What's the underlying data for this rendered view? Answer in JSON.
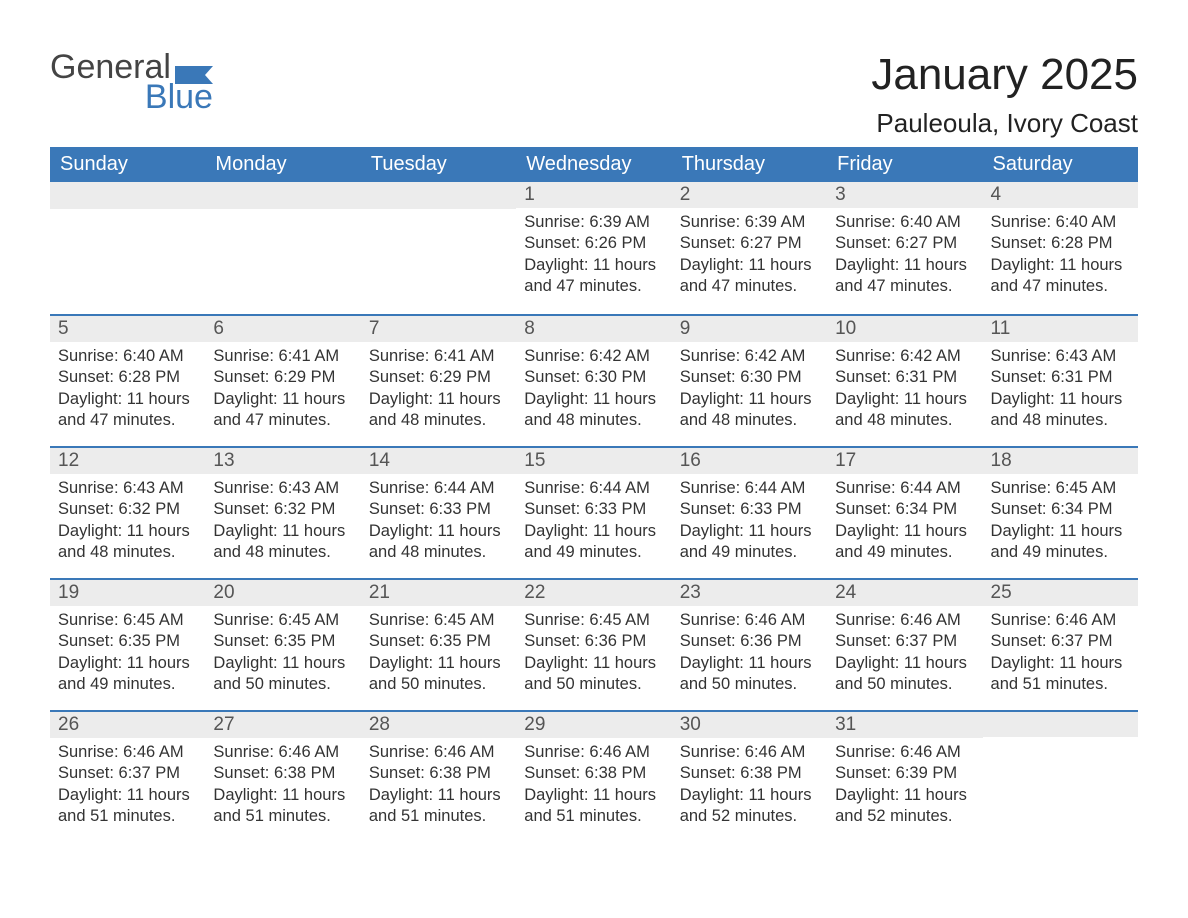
{
  "logo": {
    "word1": "General",
    "word2": "Blue",
    "accent_color": "#3a78b8",
    "text_color": "#444444"
  },
  "title": "January 2025",
  "location": "Pauleoula, Ivory Coast",
  "colors": {
    "header_bg": "#3a78b8",
    "header_text": "#ffffff",
    "daynum_bg": "#ececec",
    "row_divider": "#3a78b8",
    "body_text": "#333333",
    "page_bg": "#ffffff"
  },
  "typography": {
    "month_title_fontsize": 44,
    "location_fontsize": 26,
    "weekday_fontsize": 20,
    "daynum_fontsize": 19,
    "body_fontsize": 16.5,
    "logo_fontsize": 34
  },
  "weekdays": [
    "Sunday",
    "Monday",
    "Tuesday",
    "Wednesday",
    "Thursday",
    "Friday",
    "Saturday"
  ],
  "weeks": [
    [
      null,
      null,
      null,
      {
        "n": "1",
        "sr": "Sunrise: 6:39 AM",
        "ss": "Sunset: 6:26 PM",
        "dl": "Daylight: 11 hours and 47 minutes."
      },
      {
        "n": "2",
        "sr": "Sunrise: 6:39 AM",
        "ss": "Sunset: 6:27 PM",
        "dl": "Daylight: 11 hours and 47 minutes."
      },
      {
        "n": "3",
        "sr": "Sunrise: 6:40 AM",
        "ss": "Sunset: 6:27 PM",
        "dl": "Daylight: 11 hours and 47 minutes."
      },
      {
        "n": "4",
        "sr": "Sunrise: 6:40 AM",
        "ss": "Sunset: 6:28 PM",
        "dl": "Daylight: 11 hours and 47 minutes."
      }
    ],
    [
      {
        "n": "5",
        "sr": "Sunrise: 6:40 AM",
        "ss": "Sunset: 6:28 PM",
        "dl": "Daylight: 11 hours and 47 minutes."
      },
      {
        "n": "6",
        "sr": "Sunrise: 6:41 AM",
        "ss": "Sunset: 6:29 PM",
        "dl": "Daylight: 11 hours and 47 minutes."
      },
      {
        "n": "7",
        "sr": "Sunrise: 6:41 AM",
        "ss": "Sunset: 6:29 PM",
        "dl": "Daylight: 11 hours and 48 minutes."
      },
      {
        "n": "8",
        "sr": "Sunrise: 6:42 AM",
        "ss": "Sunset: 6:30 PM",
        "dl": "Daylight: 11 hours and 48 minutes."
      },
      {
        "n": "9",
        "sr": "Sunrise: 6:42 AM",
        "ss": "Sunset: 6:30 PM",
        "dl": "Daylight: 11 hours and 48 minutes."
      },
      {
        "n": "10",
        "sr": "Sunrise: 6:42 AM",
        "ss": "Sunset: 6:31 PM",
        "dl": "Daylight: 11 hours and 48 minutes."
      },
      {
        "n": "11",
        "sr": "Sunrise: 6:43 AM",
        "ss": "Sunset: 6:31 PM",
        "dl": "Daylight: 11 hours and 48 minutes."
      }
    ],
    [
      {
        "n": "12",
        "sr": "Sunrise: 6:43 AM",
        "ss": "Sunset: 6:32 PM",
        "dl": "Daylight: 11 hours and 48 minutes."
      },
      {
        "n": "13",
        "sr": "Sunrise: 6:43 AM",
        "ss": "Sunset: 6:32 PM",
        "dl": "Daylight: 11 hours and 48 minutes."
      },
      {
        "n": "14",
        "sr": "Sunrise: 6:44 AM",
        "ss": "Sunset: 6:33 PM",
        "dl": "Daylight: 11 hours and 48 minutes."
      },
      {
        "n": "15",
        "sr": "Sunrise: 6:44 AM",
        "ss": "Sunset: 6:33 PM",
        "dl": "Daylight: 11 hours and 49 minutes."
      },
      {
        "n": "16",
        "sr": "Sunrise: 6:44 AM",
        "ss": "Sunset: 6:33 PM",
        "dl": "Daylight: 11 hours and 49 minutes."
      },
      {
        "n": "17",
        "sr": "Sunrise: 6:44 AM",
        "ss": "Sunset: 6:34 PM",
        "dl": "Daylight: 11 hours and 49 minutes."
      },
      {
        "n": "18",
        "sr": "Sunrise: 6:45 AM",
        "ss": "Sunset: 6:34 PM",
        "dl": "Daylight: 11 hours and 49 minutes."
      }
    ],
    [
      {
        "n": "19",
        "sr": "Sunrise: 6:45 AM",
        "ss": "Sunset: 6:35 PM",
        "dl": "Daylight: 11 hours and 49 minutes."
      },
      {
        "n": "20",
        "sr": "Sunrise: 6:45 AM",
        "ss": "Sunset: 6:35 PM",
        "dl": "Daylight: 11 hours and 50 minutes."
      },
      {
        "n": "21",
        "sr": "Sunrise: 6:45 AM",
        "ss": "Sunset: 6:35 PM",
        "dl": "Daylight: 11 hours and 50 minutes."
      },
      {
        "n": "22",
        "sr": "Sunrise: 6:45 AM",
        "ss": "Sunset: 6:36 PM",
        "dl": "Daylight: 11 hours and 50 minutes."
      },
      {
        "n": "23",
        "sr": "Sunrise: 6:46 AM",
        "ss": "Sunset: 6:36 PM",
        "dl": "Daylight: 11 hours and 50 minutes."
      },
      {
        "n": "24",
        "sr": "Sunrise: 6:46 AM",
        "ss": "Sunset: 6:37 PM",
        "dl": "Daylight: 11 hours and 50 minutes."
      },
      {
        "n": "25",
        "sr": "Sunrise: 6:46 AM",
        "ss": "Sunset: 6:37 PM",
        "dl": "Daylight: 11 hours and 51 minutes."
      }
    ],
    [
      {
        "n": "26",
        "sr": "Sunrise: 6:46 AM",
        "ss": "Sunset: 6:37 PM",
        "dl": "Daylight: 11 hours and 51 minutes."
      },
      {
        "n": "27",
        "sr": "Sunrise: 6:46 AM",
        "ss": "Sunset: 6:38 PM",
        "dl": "Daylight: 11 hours and 51 minutes."
      },
      {
        "n": "28",
        "sr": "Sunrise: 6:46 AM",
        "ss": "Sunset: 6:38 PM",
        "dl": "Daylight: 11 hours and 51 minutes."
      },
      {
        "n": "29",
        "sr": "Sunrise: 6:46 AM",
        "ss": "Sunset: 6:38 PM",
        "dl": "Daylight: 11 hours and 51 minutes."
      },
      {
        "n": "30",
        "sr": "Sunrise: 6:46 AM",
        "ss": "Sunset: 6:38 PM",
        "dl": "Daylight: 11 hours and 52 minutes."
      },
      {
        "n": "31",
        "sr": "Sunrise: 6:46 AM",
        "ss": "Sunset: 6:39 PM",
        "dl": "Daylight: 11 hours and 52 minutes."
      },
      null
    ]
  ]
}
